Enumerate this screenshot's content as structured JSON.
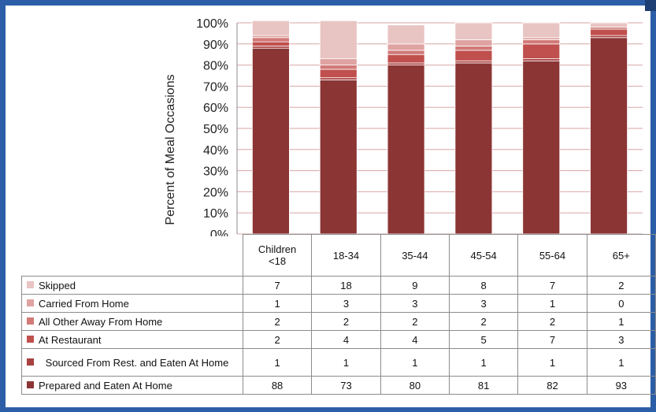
{
  "chart_data": {
    "type": "bar",
    "stacked": true,
    "ylabel": "Percent of Meal Occasions",
    "ylim": [
      0,
      100
    ],
    "yticks": [
      "0%",
      "10%",
      "20%",
      "30%",
      "40%",
      "50%",
      "60%",
      "70%",
      "80%",
      "90%",
      "100%"
    ],
    "grid": true,
    "categories": [
      "Children <18",
      "18-34",
      "35-44",
      "45-54",
      "55-64",
      "65+"
    ],
    "series": [
      {
        "name": "Prepared and Eaten At Home",
        "color": "#8b3535",
        "values": [
          88,
          73,
          80,
          81,
          82,
          93
        ]
      },
      {
        "name": "Sourced From Rest. and Eaten At Home",
        "color": "#a84040",
        "values": [
          1,
          1,
          1,
          1,
          1,
          1
        ]
      },
      {
        "name": "At Restaurant",
        "color": "#c0504d",
        "values": [
          2,
          4,
          4,
          5,
          7,
          3
        ]
      },
      {
        "name": "All Other Away From Home",
        "color": "#d17a78",
        "values": [
          2,
          2,
          2,
          2,
          2,
          1
        ]
      },
      {
        "name": "Carried From Home",
        "color": "#dfa3a2",
        "values": [
          1,
          3,
          3,
          3,
          1,
          0
        ]
      },
      {
        "name": "Skipped",
        "color": "#e8c4c3",
        "values": [
          7,
          18,
          9,
          8,
          7,
          2
        ]
      }
    ],
    "table_order": [
      "Skipped",
      "Carried From Home",
      "All Other Away From Home",
      "At Restaurant",
      "Sourced From Rest. and Eaten At Home",
      "Prepared and Eaten At Home"
    ]
  }
}
